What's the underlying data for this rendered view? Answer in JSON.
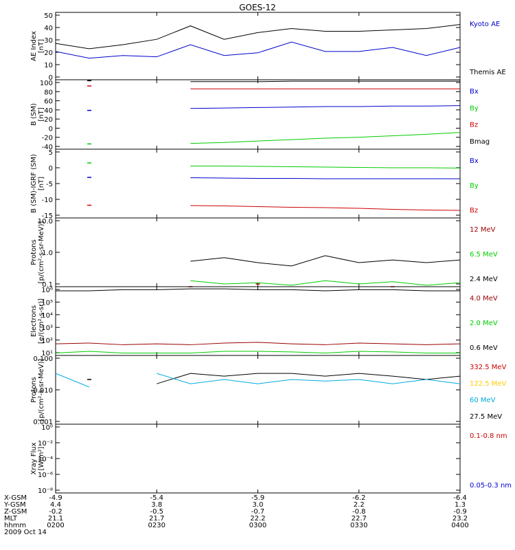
{
  "title": "GOES-12",
  "x_axis": {
    "ticks": [
      "0200",
      "0230",
      "0300",
      "0330",
      "0400"
    ],
    "row_labels": [
      "X-GSM",
      "Y-GSM",
      "Z-GSM",
      "MLT",
      "hhmm"
    ],
    "rows": [
      [
        "-4.9",
        "-5.4",
        "-5.9",
        "-6.2",
        "-6.4"
      ],
      [
        "4.4",
        "3.8",
        "3.0",
        "2.2",
        "1.3"
      ],
      [
        "-0.2",
        "-0.5",
        "-0.7",
        "-0.8",
        "-0.9"
      ],
      [
        "21.1",
        "21.7",
        "22.2",
        "22.7",
        "23.2"
      ],
      [
        "0200",
        "0230",
        "0300",
        "0330",
        "0400"
      ]
    ],
    "date": "2009 Oct 14"
  },
  "colors": {
    "black": "#000000",
    "blue": "#0000cc",
    "red": "#cc0000",
    "green": "#00cc00",
    "cyan": "#00aadd",
    "yellow": "#ffcc00",
    "darkred": "#990000"
  },
  "panels": [
    {
      "ylabel": [
        "AE Index",
        "[nT]"
      ],
      "ticks": [
        "0",
        "10",
        "20",
        "30",
        "40",
        "50"
      ],
      "legend": [
        {
          "label": "Kyoto AE",
          "color": "#0000cc"
        },
        {
          "label": "Themis AE",
          "color": "#000000"
        }
      ]
    },
    {
      "ylabel": [
        "B (SM)",
        "[nT]"
      ],
      "ticks": [
        "-40",
        "-20",
        "0",
        "20",
        "40",
        "60",
        "80",
        "100"
      ],
      "legend": [
        {
          "label": "Bx",
          "color": "#0000cc"
        },
        {
          "label": "By",
          "color": "#00cc00"
        },
        {
          "label": "Bz",
          "color": "#cc0000"
        },
        {
          "label": "Bmag",
          "color": "#000000"
        }
      ]
    },
    {
      "ylabel": [
        "B (SM)-IGRF (SM)",
        "[nT]"
      ],
      "ticks": [
        "-15",
        "-10",
        "-5",
        "0",
        "5"
      ],
      "legend": [
        {
          "label": "Bx",
          "color": "#0000cc"
        },
        {
          "label": "By",
          "color": "#00cc00"
        },
        {
          "label": "Bz",
          "color": "#cc0000"
        }
      ]
    },
    {
      "ylabel": [
        "Protons",
        "[p/(cm²-s-sr-MeV)]"
      ],
      "ticks": [
        "0.1",
        "1.0",
        "10.0"
      ],
      "legend": [
        {
          "label": "12 MeV",
          "color": "#990000"
        },
        {
          "label": "6.5 MeV",
          "color": "#00cc00"
        },
        {
          "label": "2.4 MeV",
          "color": "#000000"
        }
      ]
    },
    {
      "ylabel": [
        "Electrons",
        "[e/(cm²-s-sr)]"
      ],
      "ticks": [
        "10¹",
        "10²",
        "10³",
        "10⁴",
        "10⁵",
        "10⁶"
      ],
      "legend": [
        {
          "label": "4.0 MeV",
          "color": "#990000"
        },
        {
          "label": "2.0 MeV",
          "color": "#00cc00"
        },
        {
          "label": "0.6 MeV",
          "color": "#000000"
        }
      ]
    },
    {
      "ylabel": [
        "Protons",
        "[p/(cm²-s-sr-MeV)]"
      ],
      "ticks": [
        "0.001",
        "0.010",
        "0.100"
      ],
      "legend": [
        {
          "label": "332.5 MeV",
          "color": "#cc0000"
        },
        {
          "label": "122.5 MeV",
          "color": "#ffcc00"
        },
        {
          "label": "60 MeV",
          "color": "#00aadd"
        },
        {
          "label": "27.5 MeV",
          "color": "#000000"
        }
      ]
    },
    {
      "ylabel": [
        "Xray Flux",
        "[W/m²]"
      ],
      "ticks": [
        "10⁻⁸",
        "10⁻⁶",
        "10⁻⁴",
        "10⁻²",
        "10⁰"
      ],
      "legend": [
        {
          "label": "0.1-0.8 nm",
          "color": "#cc0000"
        },
        {
          "label": "0.05-0.3 nm",
          "color": "#0000cc"
        }
      ]
    }
  ],
  "chart_data": {
    "type": "line",
    "title": "GOES-12",
    "x": [
      "0200",
      "0210",
      "0220",
      "0230",
      "0240",
      "0250",
      "0300",
      "0310",
      "0320",
      "0330",
      "0340",
      "0350",
      "0400"
    ],
    "series": [
      {
        "panel": 0,
        "name": "Themis AE",
        "color": "#000000",
        "values": [
          27,
          23,
          26,
          30,
          40,
          30,
          35,
          38,
          36,
          36,
          37,
          38,
          41
        ]
      },
      {
        "panel": 0,
        "name": "Kyoto AE",
        "color": "#0000cc",
        "values": [
          21,
          16,
          18,
          17,
          26,
          18,
          20,
          28,
          21,
          21,
          24,
          18,
          24
        ]
      },
      {
        "panel": 1,
        "name": "Bx",
        "color": "#0000cc",
        "values": [
          null,
          36,
          null,
          null,
          40,
          41,
          42,
          43,
          44,
          44,
          45,
          45,
          46
        ]
      },
      {
        "panel": 1,
        "name": "By",
        "color": "#00cc00",
        "values": [
          null,
          -34,
          null,
          null,
          -33,
          -31,
          -28,
          -25,
          -22,
          -20,
          -17,
          -14,
          -10
        ]
      },
      {
        "panel": 1,
        "name": "Bz",
        "color": "#cc0000",
        "values": [
          null,
          87,
          null,
          null,
          81,
          81,
          81,
          81,
          81,
          81,
          81,
          81,
          81
        ]
      },
      {
        "panel": 1,
        "name": "Bmag",
        "color": "#000000",
        "values": [
          null,
          98,
          null,
          null,
          96,
          96,
          96,
          97,
          97,
          97,
          97,
          97,
          97
        ]
      },
      {
        "panel": 2,
        "name": "Bx",
        "color": "#0000cc",
        "values": [
          null,
          -3.2,
          null,
          null,
          -3.3,
          -3.4,
          -3.5,
          -3.5,
          -3.6,
          -3.6,
          -3.6,
          -3.6,
          -3.6
        ]
      },
      {
        "panel": 2,
        "name": "By",
        "color": "#00cc00",
        "values": [
          null,
          1.0,
          null,
          null,
          0.1,
          0.1,
          0.0,
          -0.1,
          -0.2,
          -0.3,
          -0.4,
          -0.4,
          -0.5
        ]
      },
      {
        "panel": 2,
        "name": "Bz",
        "color": "#cc0000",
        "values": [
          null,
          -11.3,
          null,
          null,
          -11.4,
          -11.5,
          -11.7,
          -11.9,
          -12.0,
          -12.2,
          -12.5,
          -12.7,
          -12.8
        ]
      },
      {
        "panel": 3,
        "name": "2.4 MeV",
        "color": "#000000",
        "values": [
          null,
          null,
          null,
          null,
          0.55,
          0.7,
          0.5,
          0.4,
          0.8,
          0.5,
          0.6,
          0.5,
          0.6
        ]
      },
      {
        "panel": 3,
        "name": "6.5 MeV",
        "color": "#00cc00",
        "values": [
          null,
          null,
          null,
          null,
          0.15,
          0.12,
          0.13,
          0.11,
          0.15,
          0.12,
          0.14,
          0.11,
          0.13
        ]
      },
      {
        "panel": 3,
        "name": "12 MeV",
        "color": "#990000",
        "values": [
          null,
          null,
          null,
          null,
          0.1,
          null,
          0.12,
          null,
          null,
          null,
          0.1,
          null,
          null
        ]
      },
      {
        "panel": 4,
        "name": "0.6 MeV",
        "color": "#000000",
        "values": [
          500000,
          500000,
          600000,
          600000,
          700000,
          700000,
          600000,
          600000,
          500000,
          600000,
          600000,
          500000,
          500000
        ]
      },
      {
        "panel": 4,
        "name": "4.0 MeV",
        "color": "#990000",
        "values": [
          70,
          80,
          60,
          70,
          60,
          80,
          90,
          70,
          60,
          80,
          70,
          60,
          70
        ]
      },
      {
        "panel": 4,
        "name": "2.0 MeV",
        "color": "#00cc00",
        "values": [
          15,
          20,
          15,
          15,
          15,
          20,
          20,
          18,
          15,
          20,
          18,
          15,
          15
        ]
      },
      {
        "panel": 5,
        "name": "27.5 MeV",
        "color": "#000000",
        "values": [
          null,
          0.02,
          null,
          0.015,
          0.03,
          0.025,
          0.03,
          0.03,
          0.025,
          0.03,
          0.025,
          0.02,
          0.025
        ]
      },
      {
        "panel": 5,
        "name": "60 MeV",
        "color": "#00aadd",
        "values": [
          0.03,
          0.012,
          null,
          0.03,
          0.015,
          0.02,
          0.015,
          0.02,
          0.018,
          0.02,
          0.015,
          0.02,
          0.015
        ]
      }
    ],
    "xlabel": "hhmm",
    "ylims": [
      [
        0,
        50
      ],
      [
        -45,
        100
      ],
      [
        -15,
        5
      ],
      [
        0.1,
        10
      ],
      [
        10,
        1000000
      ],
      [
        0.001,
        0.1
      ],
      [
        1e-09,
        1
      ]
    ]
  }
}
